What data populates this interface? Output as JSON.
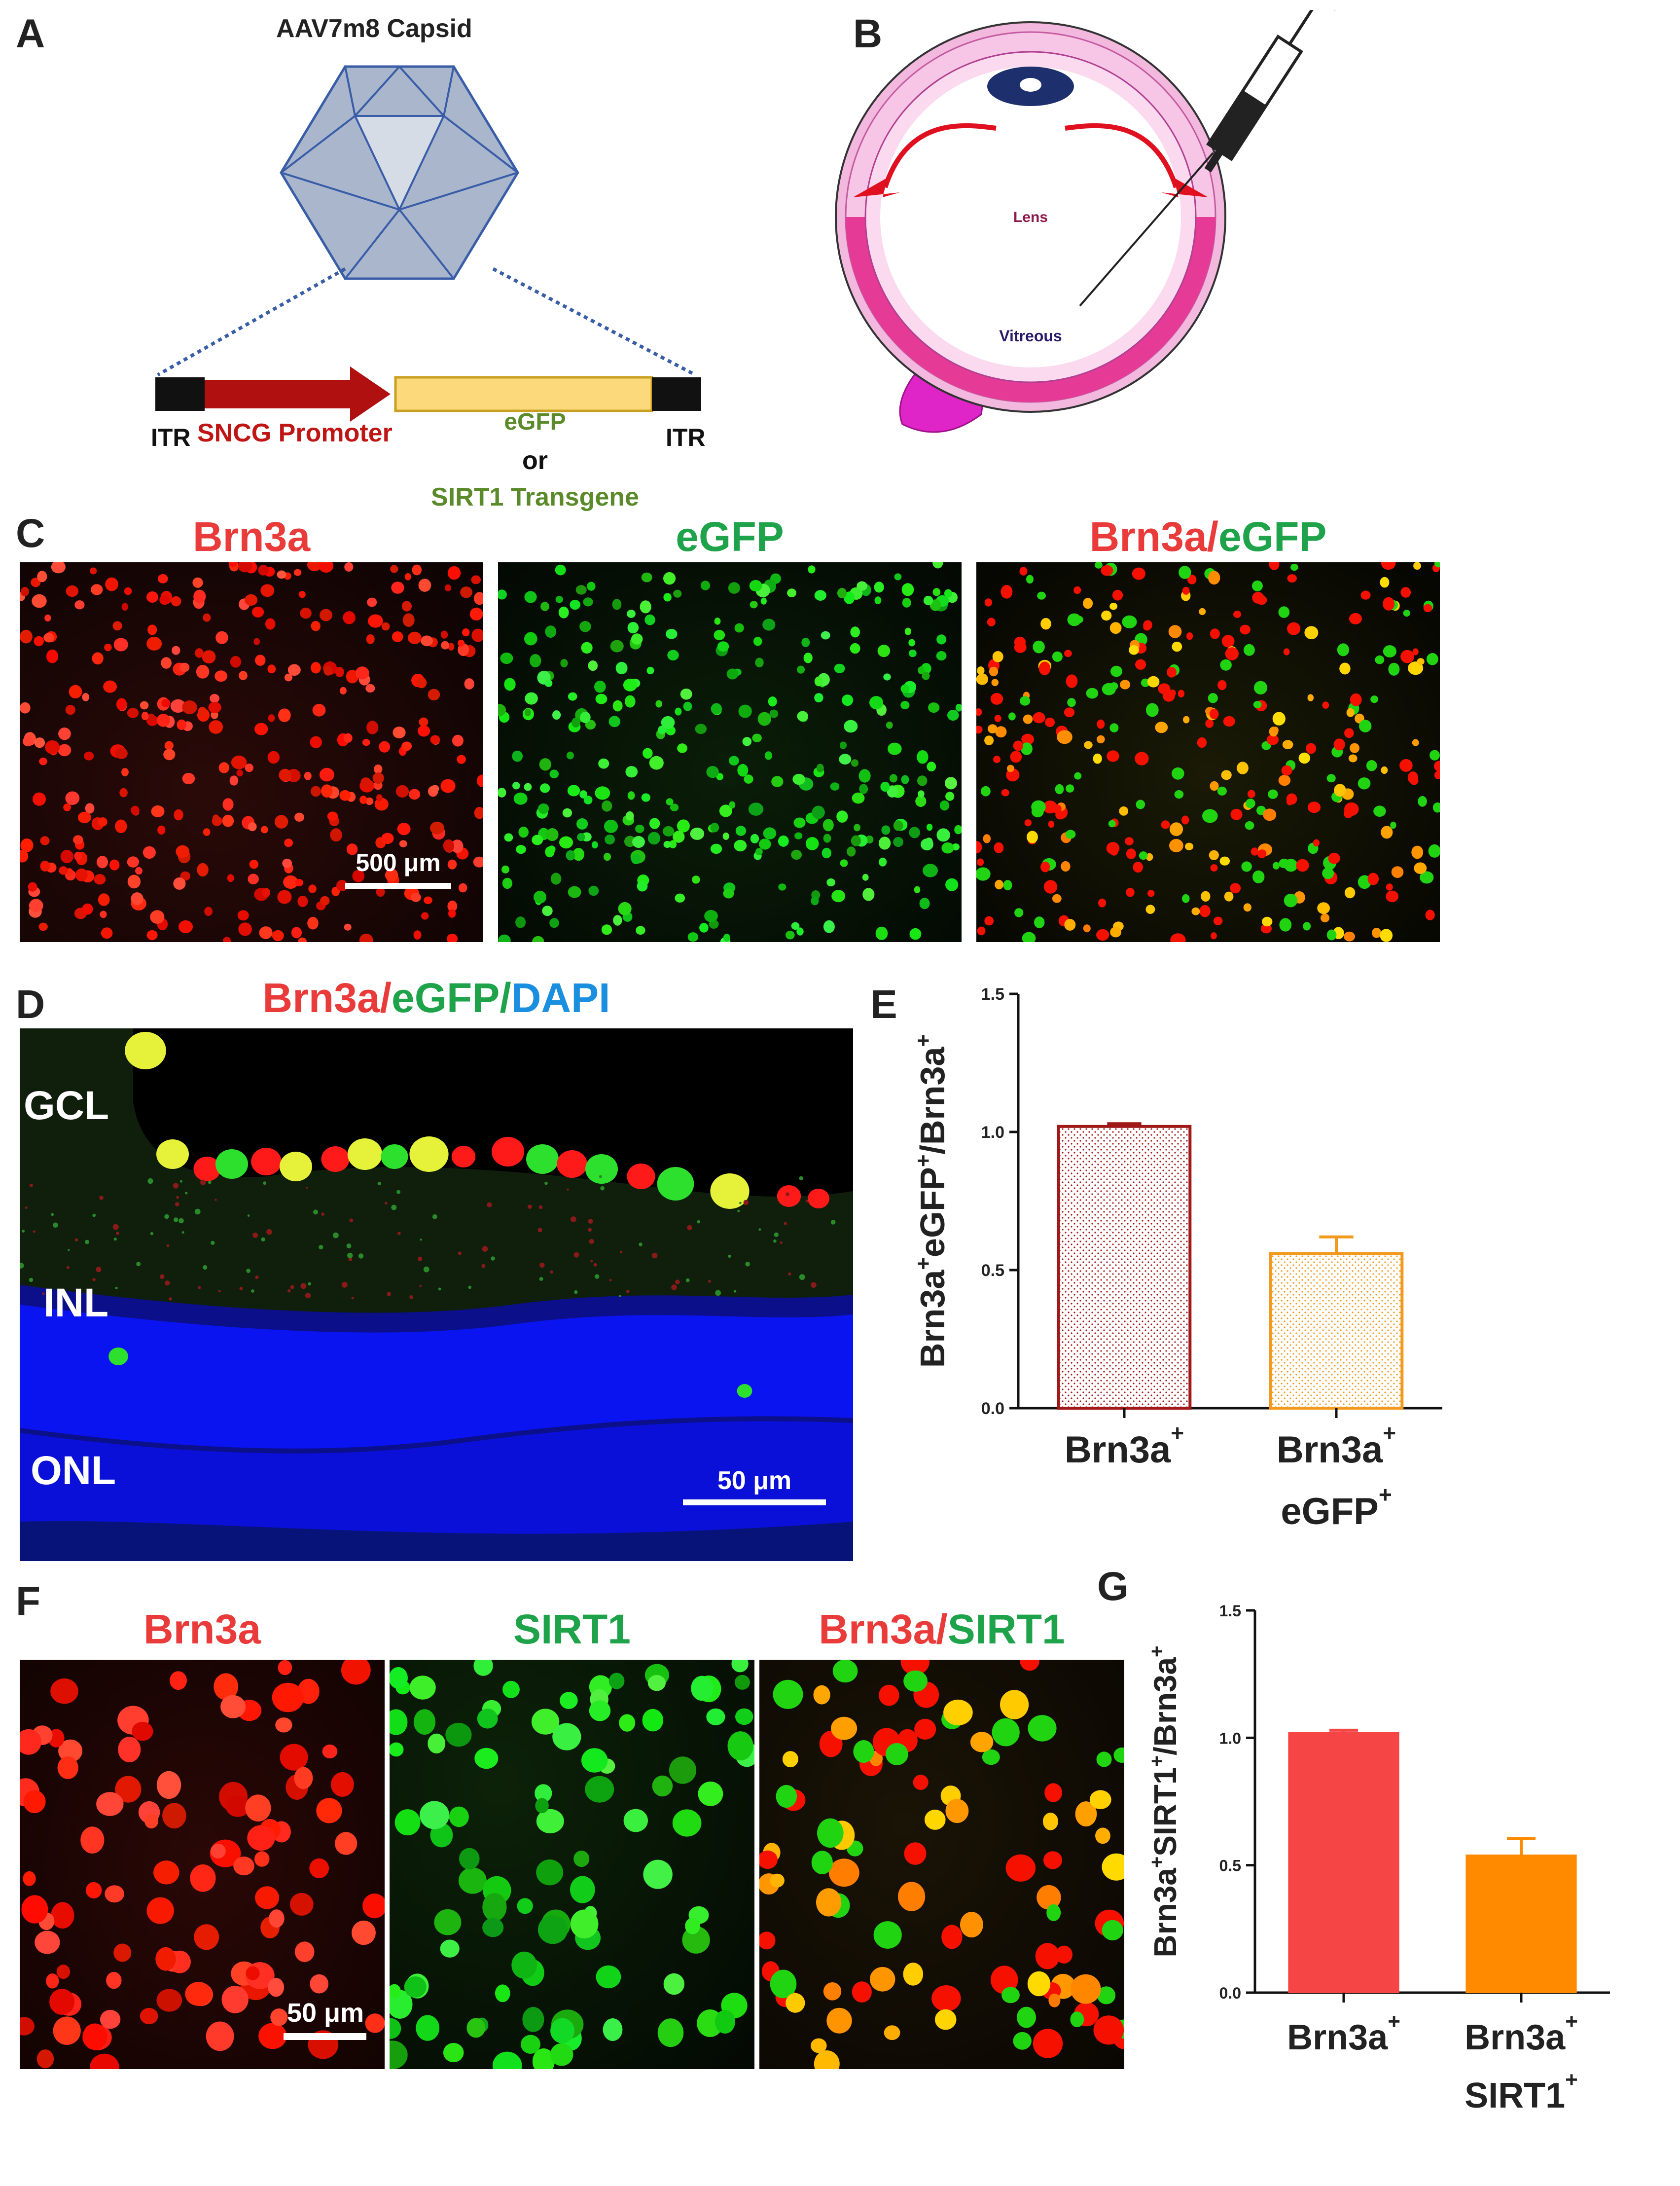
{
  "panels": {
    "A": "A",
    "B": "B",
    "C": "C",
    "D": "D",
    "E": "E",
    "F": "F",
    "G": "G"
  },
  "panelA": {
    "title": "AAV7m8 Capsid",
    "itr_left": "ITR",
    "promoter": "SNCG Promoter",
    "transgene_line1": "eGFP",
    "transgene_or": "or",
    "transgene_line2": "SIRT1 Transgene",
    "itr_right": "ITR",
    "colors": {
      "promoter": "#b01010",
      "transgene_box": "#fcd97a",
      "itr": "#111111",
      "capsid": "#a9b6cc"
    }
  },
  "panelB": {
    "lens": "Lens",
    "vitreous": "Vitreous"
  },
  "panelC": {
    "titles": [
      {
        "text": "Brn3a",
        "color": "red"
      },
      {
        "text": "eGFP",
        "color": "green"
      }
    ],
    "merge_a": "Brn3a",
    "merge_slash": "/",
    "merge_b": "eGFP",
    "scalebar": "500 μm"
  },
  "panelD": {
    "t1": "Brn3a",
    "s1": "/",
    "t2": "eGFP",
    "s2": "/",
    "t3": "DAPI",
    "layers": [
      "GCL",
      "INL",
      "ONL"
    ],
    "scalebar": "50 μm"
  },
  "panelF": {
    "titles": [
      {
        "text": "Brn3a",
        "color": "red"
      },
      {
        "text": "SIRT1",
        "color": "green"
      }
    ],
    "merge_a": "Brn3a",
    "merge_slash": "/",
    "merge_b": "SIRT1",
    "scalebar": "50 μm"
  },
  "chart_data": [
    {
      "panel": "E",
      "type": "bar",
      "ylabel_parts": [
        "Brn3a",
        "+",
        "eGFP",
        "+",
        "/Brn3a",
        "+"
      ],
      "ylim": [
        0,
        1.5
      ],
      "yticks": [
        "0.0",
        "0.5",
        "1.0",
        "1.5"
      ],
      "categories": [
        [
          "Brn3a",
          "+"
        ],
        [
          "Brn3a",
          "+",
          "eGFP",
          "+"
        ]
      ],
      "values": [
        1.02,
        0.56
      ],
      "errors": [
        0.01,
        0.06
      ],
      "colors": [
        "#a01818",
        "#f39a1e"
      ],
      "fill": "dotted"
    },
    {
      "panel": "G",
      "type": "bar",
      "ylabel_parts": [
        "Brn3a",
        "+",
        "SIRT1",
        "+",
        "/Brn3a",
        "+"
      ],
      "ylim": [
        0,
        1.5
      ],
      "yticks": [
        "0.0",
        "0.5",
        "1.0",
        "1.5"
      ],
      "categories": [
        [
          "Brn3a",
          "+"
        ],
        [
          "Brn3a",
          "+",
          "SIRT1",
          "+"
        ]
      ],
      "values": [
        1.02,
        0.54
      ],
      "errors": [
        0.01,
        0.065
      ],
      "colors": [
        "#f54545",
        "#ff8a00"
      ],
      "fill": "solid"
    }
  ]
}
